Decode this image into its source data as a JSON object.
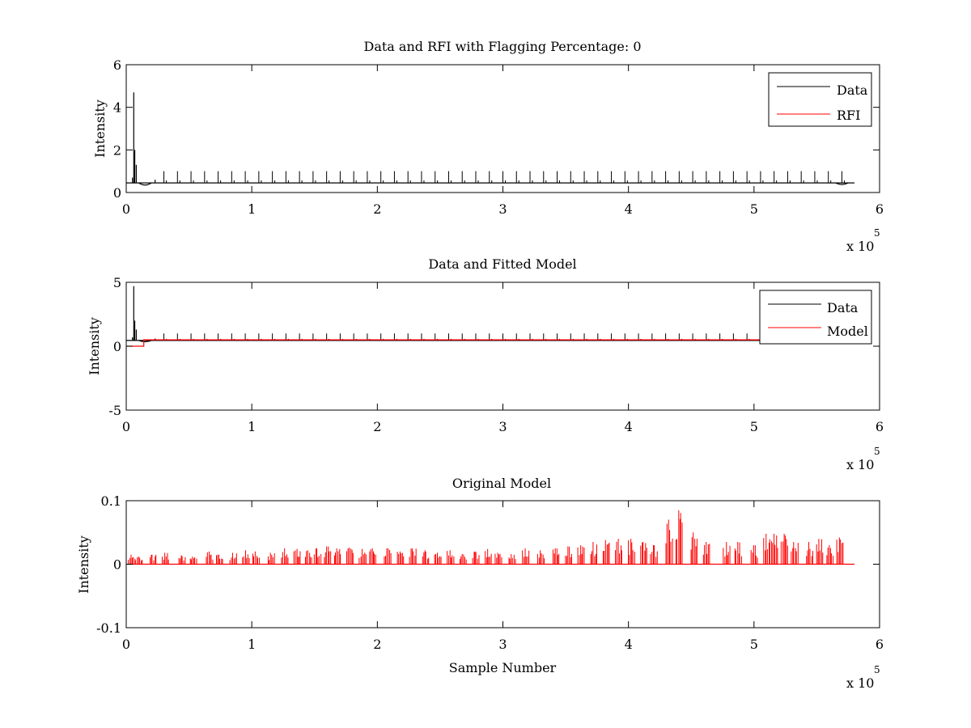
{
  "chart_data": [
    {
      "type": "line",
      "title": "Data and RFI with Flagging Percentage: 0",
      "xlabel": "",
      "ylabel": "Intensity",
      "xlim": [
        0,
        600000
      ],
      "ylim": [
        0,
        6
      ],
      "xticks": [
        0,
        1,
        2,
        3,
        4,
        5,
        6
      ],
      "xtick_labels": [
        "0",
        "1",
        "2",
        "3",
        "4",
        "5",
        "6"
      ],
      "yticks": [
        0,
        2,
        4,
        6
      ],
      "ytick_labels": [
        "0",
        "2",
        "4",
        "6"
      ],
      "x_multiplier": "x 10",
      "x_multiplier_exp": "5",
      "legend": {
        "placement": "top-right"
      },
      "series": [
        {
          "name": "Data",
          "color": "#000000",
          "baseline": 0.45,
          "x_start": 0,
          "x_end": 580000,
          "features": [
            {
              "kind": "spike",
              "x": 5000,
              "y": 0.7
            },
            {
              "kind": "spike",
              "x": 6000,
              "y": 4.7
            },
            {
              "kind": "spike",
              "x": 6800,
              "y": 2.0
            },
            {
              "kind": "spike",
              "x": 8000,
              "y": 1.3
            },
            {
              "kind": "dip",
              "x": 15000,
              "y": 0.25
            },
            {
              "kind": "spike",
              "x": 23000,
              "y": 0.6
            },
            {
              "kind": "dip",
              "x": 570000,
              "y": 0.3
            }
          ],
          "periodic_peaks": {
            "start": 30000,
            "step": 10800,
            "count": 52,
            "height": 1.0
          }
        },
        {
          "name": "RFI",
          "color": "#ff0000",
          "values": []
        }
      ]
    },
    {
      "type": "line",
      "title": "Data and Fitted Model",
      "xlabel": "",
      "ylabel": "Intensity",
      "xlim": [
        0,
        600000
      ],
      "ylim": [
        -5,
        5
      ],
      "xticks": [
        0,
        1,
        2,
        3,
        4,
        5,
        6
      ],
      "xtick_labels": [
        "0",
        "1",
        "2",
        "3",
        "4",
        "5",
        "6"
      ],
      "yticks": [
        -5,
        0,
        5
      ],
      "ytick_labels": [
        "-5",
        "0",
        "5"
      ],
      "x_multiplier": "x 10",
      "x_multiplier_exp": "5",
      "legend": {
        "placement": "top-right"
      },
      "series": [
        {
          "name": "Data",
          "color": "#000000",
          "baseline": 0.45,
          "x_start": 0,
          "x_end": 580000,
          "features": [
            {
              "kind": "spike",
              "x": 5000,
              "y": 0.7
            },
            {
              "kind": "spike",
              "x": 6000,
              "y": 4.7
            },
            {
              "kind": "spike",
              "x": 6800,
              "y": 2.0
            },
            {
              "kind": "spike",
              "x": 8000,
              "y": 1.3
            },
            {
              "kind": "dip",
              "x": 15000,
              "y": 0.25
            },
            {
              "kind": "spike",
              "x": 23000,
              "y": 0.6
            }
          ],
          "periodic_peaks": {
            "start": 30000,
            "step": 10800,
            "count": 52,
            "height": 1.0
          }
        },
        {
          "name": "Model",
          "color": "#ff0000",
          "steps": [
            {
              "x0": 0,
              "x1": 14000,
              "y": 0.0
            },
            {
              "x0": 14000,
              "x1": 580000,
              "y": 0.5
            }
          ]
        }
      ]
    },
    {
      "type": "line",
      "title": "Original Model",
      "xlabel": "Sample Number",
      "ylabel": "Intensity",
      "xlim": [
        0,
        600000
      ],
      "ylim": [
        -0.1,
        0.1
      ],
      "xticks": [
        0,
        1,
        2,
        3,
        4,
        5,
        6
      ],
      "xtick_labels": [
        "0",
        "1",
        "2",
        "3",
        "4",
        "5",
        "6"
      ],
      "yticks": [
        -0.1,
        0,
        0.1
      ],
      "ytick_labels": [
        "-0.1",
        "0",
        "0.1"
      ],
      "x_multiplier": "x 10",
      "x_multiplier_exp": "5",
      "series": [
        {
          "name": "",
          "color": "#ff0000",
          "baseline": 0.0,
          "x_start": 0,
          "x_end": 580000,
          "clusters": [
            {
              "x": 4000,
              "h": 0.015
            },
            {
              "x": 10000,
              "h": 0.012
            },
            {
              "x": 21000,
              "h": 0.015
            },
            {
              "x": 31000,
              "h": 0.018
            },
            {
              "x": 44000,
              "h": 0.014
            },
            {
              "x": 53000,
              "h": 0.012
            },
            {
              "x": 66000,
              "h": 0.02
            },
            {
              "x": 74000,
              "h": 0.015
            },
            {
              "x": 85000,
              "h": 0.018
            },
            {
              "x": 95000,
              "h": 0.022
            },
            {
              "x": 103000,
              "h": 0.02
            },
            {
              "x": 115000,
              "h": 0.018
            },
            {
              "x": 126000,
              "h": 0.025
            },
            {
              "x": 136000,
              "h": 0.024
            },
            {
              "x": 145000,
              "h": 0.022
            },
            {
              "x": 152000,
              "h": 0.025
            },
            {
              "x": 160000,
              "h": 0.028
            },
            {
              "x": 168000,
              "h": 0.025
            },
            {
              "x": 178000,
              "h": 0.026
            },
            {
              "x": 188000,
              "h": 0.024
            },
            {
              "x": 196000,
              "h": 0.025
            },
            {
              "x": 208000,
              "h": 0.025
            },
            {
              "x": 218000,
              "h": 0.02
            },
            {
              "x": 228000,
              "h": 0.025
            },
            {
              "x": 238000,
              "h": 0.022
            },
            {
              "x": 248000,
              "h": 0.018
            },
            {
              "x": 258000,
              "h": 0.022
            },
            {
              "x": 268000,
              "h": 0.016
            },
            {
              "x": 278000,
              "h": 0.02
            },
            {
              "x": 288000,
              "h": 0.024
            },
            {
              "x": 296000,
              "h": 0.018
            },
            {
              "x": 307000,
              "h": 0.016
            },
            {
              "x": 318000,
              "h": 0.025
            },
            {
              "x": 330000,
              "h": 0.022
            },
            {
              "x": 342000,
              "h": 0.025
            },
            {
              "x": 352000,
              "h": 0.028
            },
            {
              "x": 362000,
              "h": 0.03
            },
            {
              "x": 372000,
              "h": 0.035
            },
            {
              "x": 382000,
              "h": 0.038
            },
            {
              "x": 392000,
              "h": 0.04
            },
            {
              "x": 402000,
              "h": 0.04
            },
            {
              "x": 412000,
              "h": 0.035
            },
            {
              "x": 420000,
              "h": 0.03
            },
            {
              "x": 432000,
              "h": 0.07
            },
            {
              "x": 440000,
              "h": 0.085
            },
            {
              "x": 452000,
              "h": 0.05
            },
            {
              "x": 462000,
              "h": 0.035
            },
            {
              "x": 478000,
              "h": 0.035
            },
            {
              "x": 487000,
              "h": 0.035
            },
            {
              "x": 500000,
              "h": 0.03
            },
            {
              "x": 510000,
              "h": 0.048
            },
            {
              "x": 516000,
              "h": 0.048
            },
            {
              "x": 524000,
              "h": 0.048
            },
            {
              "x": 532000,
              "h": 0.035
            },
            {
              "x": 544000,
              "h": 0.035
            },
            {
              "x": 552000,
              "h": 0.04
            },
            {
              "x": 560000,
              "h": 0.03
            },
            {
              "x": 568000,
              "h": 0.042
            }
          ]
        }
      ]
    }
  ]
}
